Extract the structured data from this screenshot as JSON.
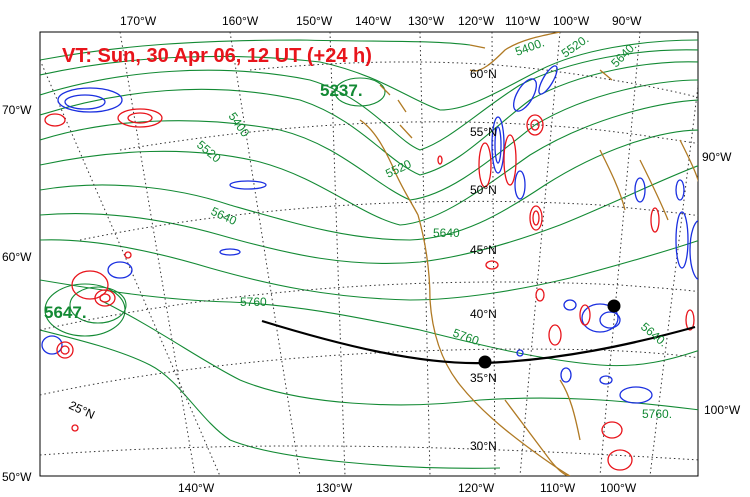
{
  "title": "VT:  Sun, 30 Apr 06, 12 UT (+24 h)",
  "top_lon_labels": [
    "170°W",
    "160°W",
    "150°W",
    "140°W",
    "130°W",
    "120°W",
    "110°W",
    "100°W",
    "90°W"
  ],
  "bottom_lon_labels": [
    "140°W",
    "130°W",
    "120°W",
    "110°W",
    "100°W"
  ],
  "left_lat_labels": [
    "70°W",
    "60°W",
    "50°W"
  ],
  "right_labels": [
    "90°W",
    "100°W"
  ],
  "lat_labels": [
    "60°N",
    "55°N",
    "50°N",
    "45°N",
    "40°N",
    "35°N",
    "30°N",
    "25°N"
  ],
  "contour_labels": [
    "5400",
    "5520",
    "5640",
    "5760",
    "5400.",
    "5520.",
    "5640.",
    "5760.",
    "5640.",
    "5760."
  ],
  "center_labels": [
    "5237.",
    "5647."
  ],
  "colors": {
    "title": "#e8141b",
    "height_contours": "#138a34",
    "positive_vorticity": "#e8141b",
    "negative_vorticity": "#1a2fe0",
    "coastline": "#b07a24",
    "grid": "#333333",
    "cross_section": "#000000"
  }
}
